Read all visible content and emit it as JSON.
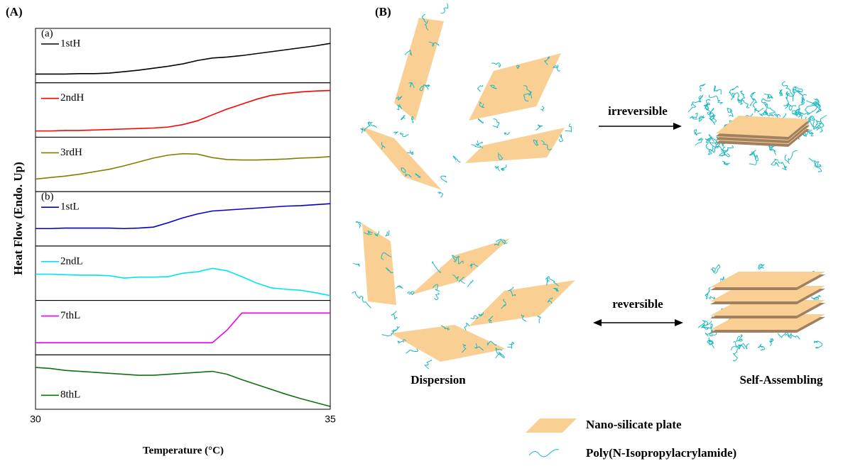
{
  "chart_data": {
    "type": "line",
    "panel_label": "(A)",
    "y_label": "Heat Flow (Endo. Up)",
    "x_label": "Temperature (°C)",
    "xlim": [
      30,
      35
    ],
    "xticks": [
      30,
      35
    ],
    "ylim": [
      0,
      1
    ],
    "group_labels": [
      "(a)",
      "(b)"
    ],
    "x": [
      30,
      30.25,
      30.5,
      30.75,
      31,
      31.25,
      31.5,
      31.75,
      32,
      32.25,
      32.5,
      32.75,
      33,
      33.25,
      33.5,
      33.75,
      34,
      34.25,
      34.5,
      34.75,
      35
    ],
    "series": [
      {
        "name": "1stH",
        "color": "#000000",
        "values": [
          0.12,
          0.12,
          0.12,
          0.13,
          0.13,
          0.14,
          0.17,
          0.2,
          0.24,
          0.28,
          0.33,
          0.4,
          0.45,
          0.47,
          0.5,
          0.54,
          0.58,
          0.62,
          0.66,
          0.7,
          0.75
        ]
      },
      {
        "name": "2ndH",
        "color": "#ff0000",
        "values": [
          0.07,
          0.07,
          0.08,
          0.08,
          0.09,
          0.1,
          0.11,
          0.12,
          0.13,
          0.15,
          0.2,
          0.28,
          0.4,
          0.52,
          0.62,
          0.72,
          0.8,
          0.84,
          0.87,
          0.89,
          0.9
        ]
      },
      {
        "name": "3rdH",
        "color": "#808000",
        "values": [
          0.2,
          0.23,
          0.26,
          0.3,
          0.35,
          0.4,
          0.47,
          0.55,
          0.63,
          0.69,
          0.72,
          0.71,
          0.64,
          0.6,
          0.59,
          0.59,
          0.6,
          0.61,
          0.63,
          0.64,
          0.66
        ]
      },
      {
        "name": "1stL",
        "color": "#0000cc",
        "values": [
          0.3,
          0.3,
          0.31,
          0.31,
          0.31,
          0.31,
          0.3,
          0.31,
          0.33,
          0.42,
          0.52,
          0.6,
          0.66,
          0.68,
          0.7,
          0.72,
          0.74,
          0.76,
          0.77,
          0.79,
          0.81
        ]
      },
      {
        "name": "2ndL",
        "color": "#00e5ee",
        "values": [
          0.48,
          0.48,
          0.47,
          0.46,
          0.46,
          0.45,
          0.4,
          0.42,
          0.42,
          0.43,
          0.5,
          0.53,
          0.6,
          0.55,
          0.43,
          0.3,
          0.2,
          0.17,
          0.15,
          0.1,
          0.04
        ]
      },
      {
        "name": "7thL",
        "color": "#ee00ee",
        "values": [
          0.19,
          0.19,
          0.19,
          0.19,
          0.19,
          0.19,
          0.19,
          0.19,
          0.19,
          0.19,
          0.19,
          0.19,
          0.19,
          0.45,
          0.8,
          0.8,
          0.8,
          0.8,
          0.8,
          0.8,
          0.8
        ]
      },
      {
        "name": "8thL",
        "color": "#107010",
        "values": [
          0.8,
          0.78,
          0.74,
          0.72,
          0.7,
          0.68,
          0.66,
          0.64,
          0.64,
          0.66,
          0.68,
          0.7,
          0.72,
          0.66,
          0.55,
          0.45,
          0.35,
          0.25,
          0.16,
          0.08,
          0.0
        ]
      }
    ]
  },
  "schematic": {
    "panel_label": "(B)",
    "irreversible": "irreversible",
    "reversible": "reversible",
    "dispersion": "Dispersion",
    "self_assembling": "Self-Assembling",
    "legend": [
      "Nano-silicate plate",
      "Poly(N-Isopropylacrylamide)"
    ]
  }
}
